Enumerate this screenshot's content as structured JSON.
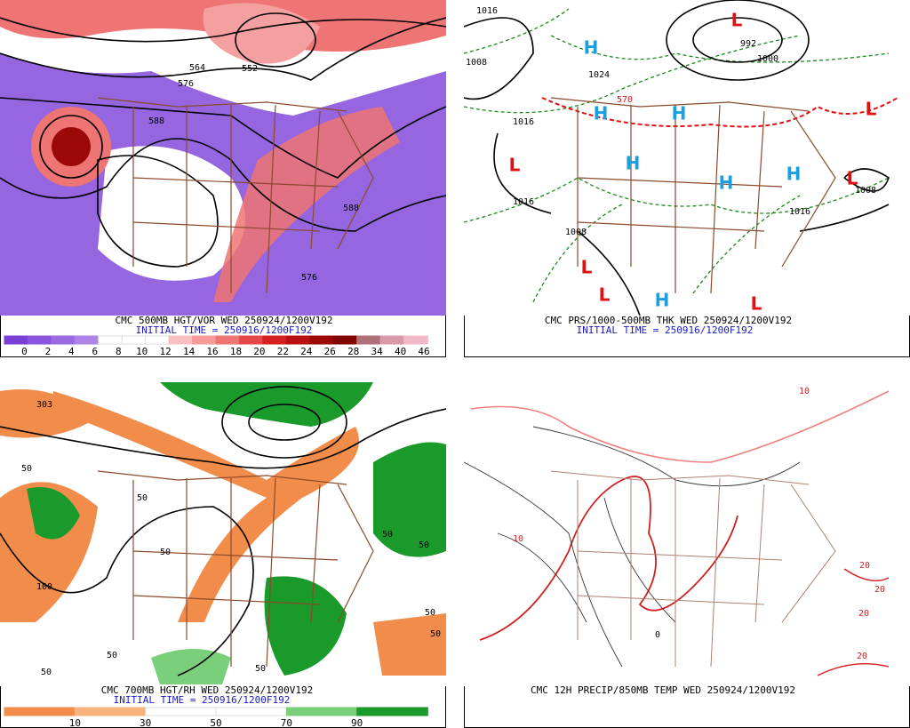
{
  "panels": [
    {
      "caption": "CMC 500MB HGT/VOR WED 250924/1200V192",
      "initial_time": "INITIAL TIME = 250916/1200F192",
      "colorbar": {
        "levels": [
          0,
          2,
          4,
          6,
          8,
          10,
          12,
          14,
          16,
          18,
          20,
          22,
          24,
          26,
          28,
          34,
          40,
          46
        ],
        "colors": [
          "#7a3fd6",
          "#8a55dc",
          "#9a6ae2",
          "#ad83e8",
          "#ffffff",
          "#ffffff",
          "#ffffff",
          "#f9c0c0",
          "#f59a9a",
          "#ef7474",
          "#e54848",
          "#d42020",
          "#b81010",
          "#9c0808",
          "#800404",
          "#b0707a",
          "#d89aa8",
          "#f0b8c8"
        ]
      },
      "map_labels": [
        "564",
        "576",
        "552",
        "588",
        "588",
        "576"
      ]
    },
    {
      "caption": "CMC PRS/1000-500MB THK WED 250924/1200V192",
      "initial_time": "INITIAL TIME = 250916/1200F192",
      "highs": [
        "H",
        "H",
        "H",
        "H",
        "H",
        "H",
        "H"
      ],
      "lows": [
        "L",
        "L",
        "L",
        "L",
        "L",
        "L",
        "L"
      ],
      "map_labels": [
        "1016",
        "1008",
        "1024",
        "992",
        "1000",
        "570",
        "1016",
        "1016",
        "1008",
        "1008",
        "1016"
      ]
    },
    {
      "caption": "CMC 700MB HGT/RH WED 250924/1200V192",
      "initial_time": "INITIAL TIME = 250916/1200F192",
      "colorbar": {
        "levels": [
          10,
          30,
          50,
          70,
          90
        ],
        "colors": [
          "#f28c4a",
          "#f8b47c",
          "#ffffff",
          "#ffffff",
          "#7ad07a",
          "#1a9a2a"
        ]
      },
      "map_labels": [
        "303",
        "50",
        "50",
        "50",
        "100",
        "50",
        "50",
        "50",
        "50",
        "50",
        "50",
        "50"
      ]
    },
    {
      "caption": "CMC 12H PRECIP/850MB TEMP WED 250924/1200V192",
      "map_labels": [
        "10",
        "20",
        "20",
        "20",
        "0",
        "10",
        "20"
      ]
    }
  ]
}
